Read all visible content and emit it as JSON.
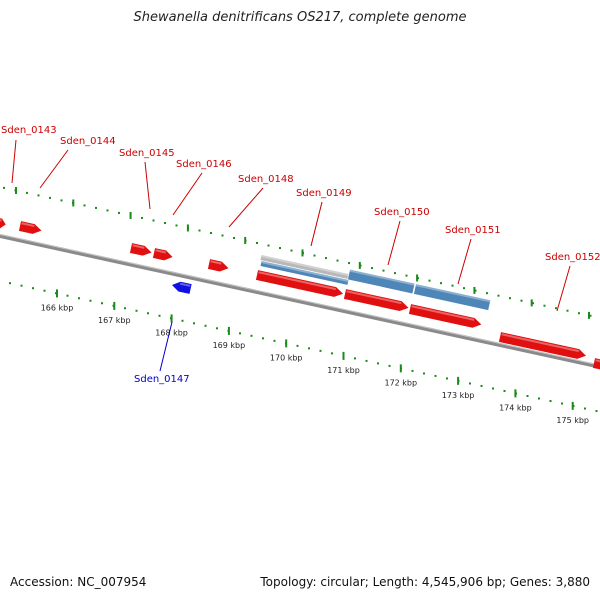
{
  "title": "Shewanella denitrificans OS217, complete genome",
  "accession_label": "Accession: NC_007954",
  "topology_label": "Topology: circular; Length: 4,545,906 bp; Genes: 3,880",
  "colors": {
    "forward_gene": "#e01010",
    "reverse_gene": "#1010e0",
    "feature_blue": "#4f86b8",
    "feature_gray": "#b8b8b8",
    "backbone": "#8a8a8a",
    "tick": "#1a8a1a",
    "forward_label": "#cc0000",
    "reverse_label": "#0000cc"
  },
  "axis": {
    "unit": "kbp",
    "major_ticks_kbp": [
      166,
      167,
      168,
      169,
      170,
      171,
      172,
      173,
      174,
      175
    ],
    "tick_labels": [
      "166 kbp",
      "167 kbp",
      "168 kbp",
      "169 kbp",
      "170 kbp",
      "171 kbp",
      "172 kbp",
      "173 kbp",
      "174 kbp",
      "175 kbp"
    ]
  },
  "genes": [
    {
      "name": "Sden_0143",
      "strand": "+"
    },
    {
      "name": "Sden_0144",
      "strand": "+"
    },
    {
      "name": "Sden_0145",
      "strand": "+"
    },
    {
      "name": "Sden_0146",
      "strand": "+"
    },
    {
      "name": "Sden_0147",
      "strand": "-"
    },
    {
      "name": "Sden_0148",
      "strand": "+"
    },
    {
      "name": "Sden_0149",
      "strand": "+"
    },
    {
      "name": "Sden_0150",
      "strand": "+"
    },
    {
      "name": "Sden_0151",
      "strand": "+"
    },
    {
      "name": "Sden_0152",
      "strand": "+"
    }
  ]
}
